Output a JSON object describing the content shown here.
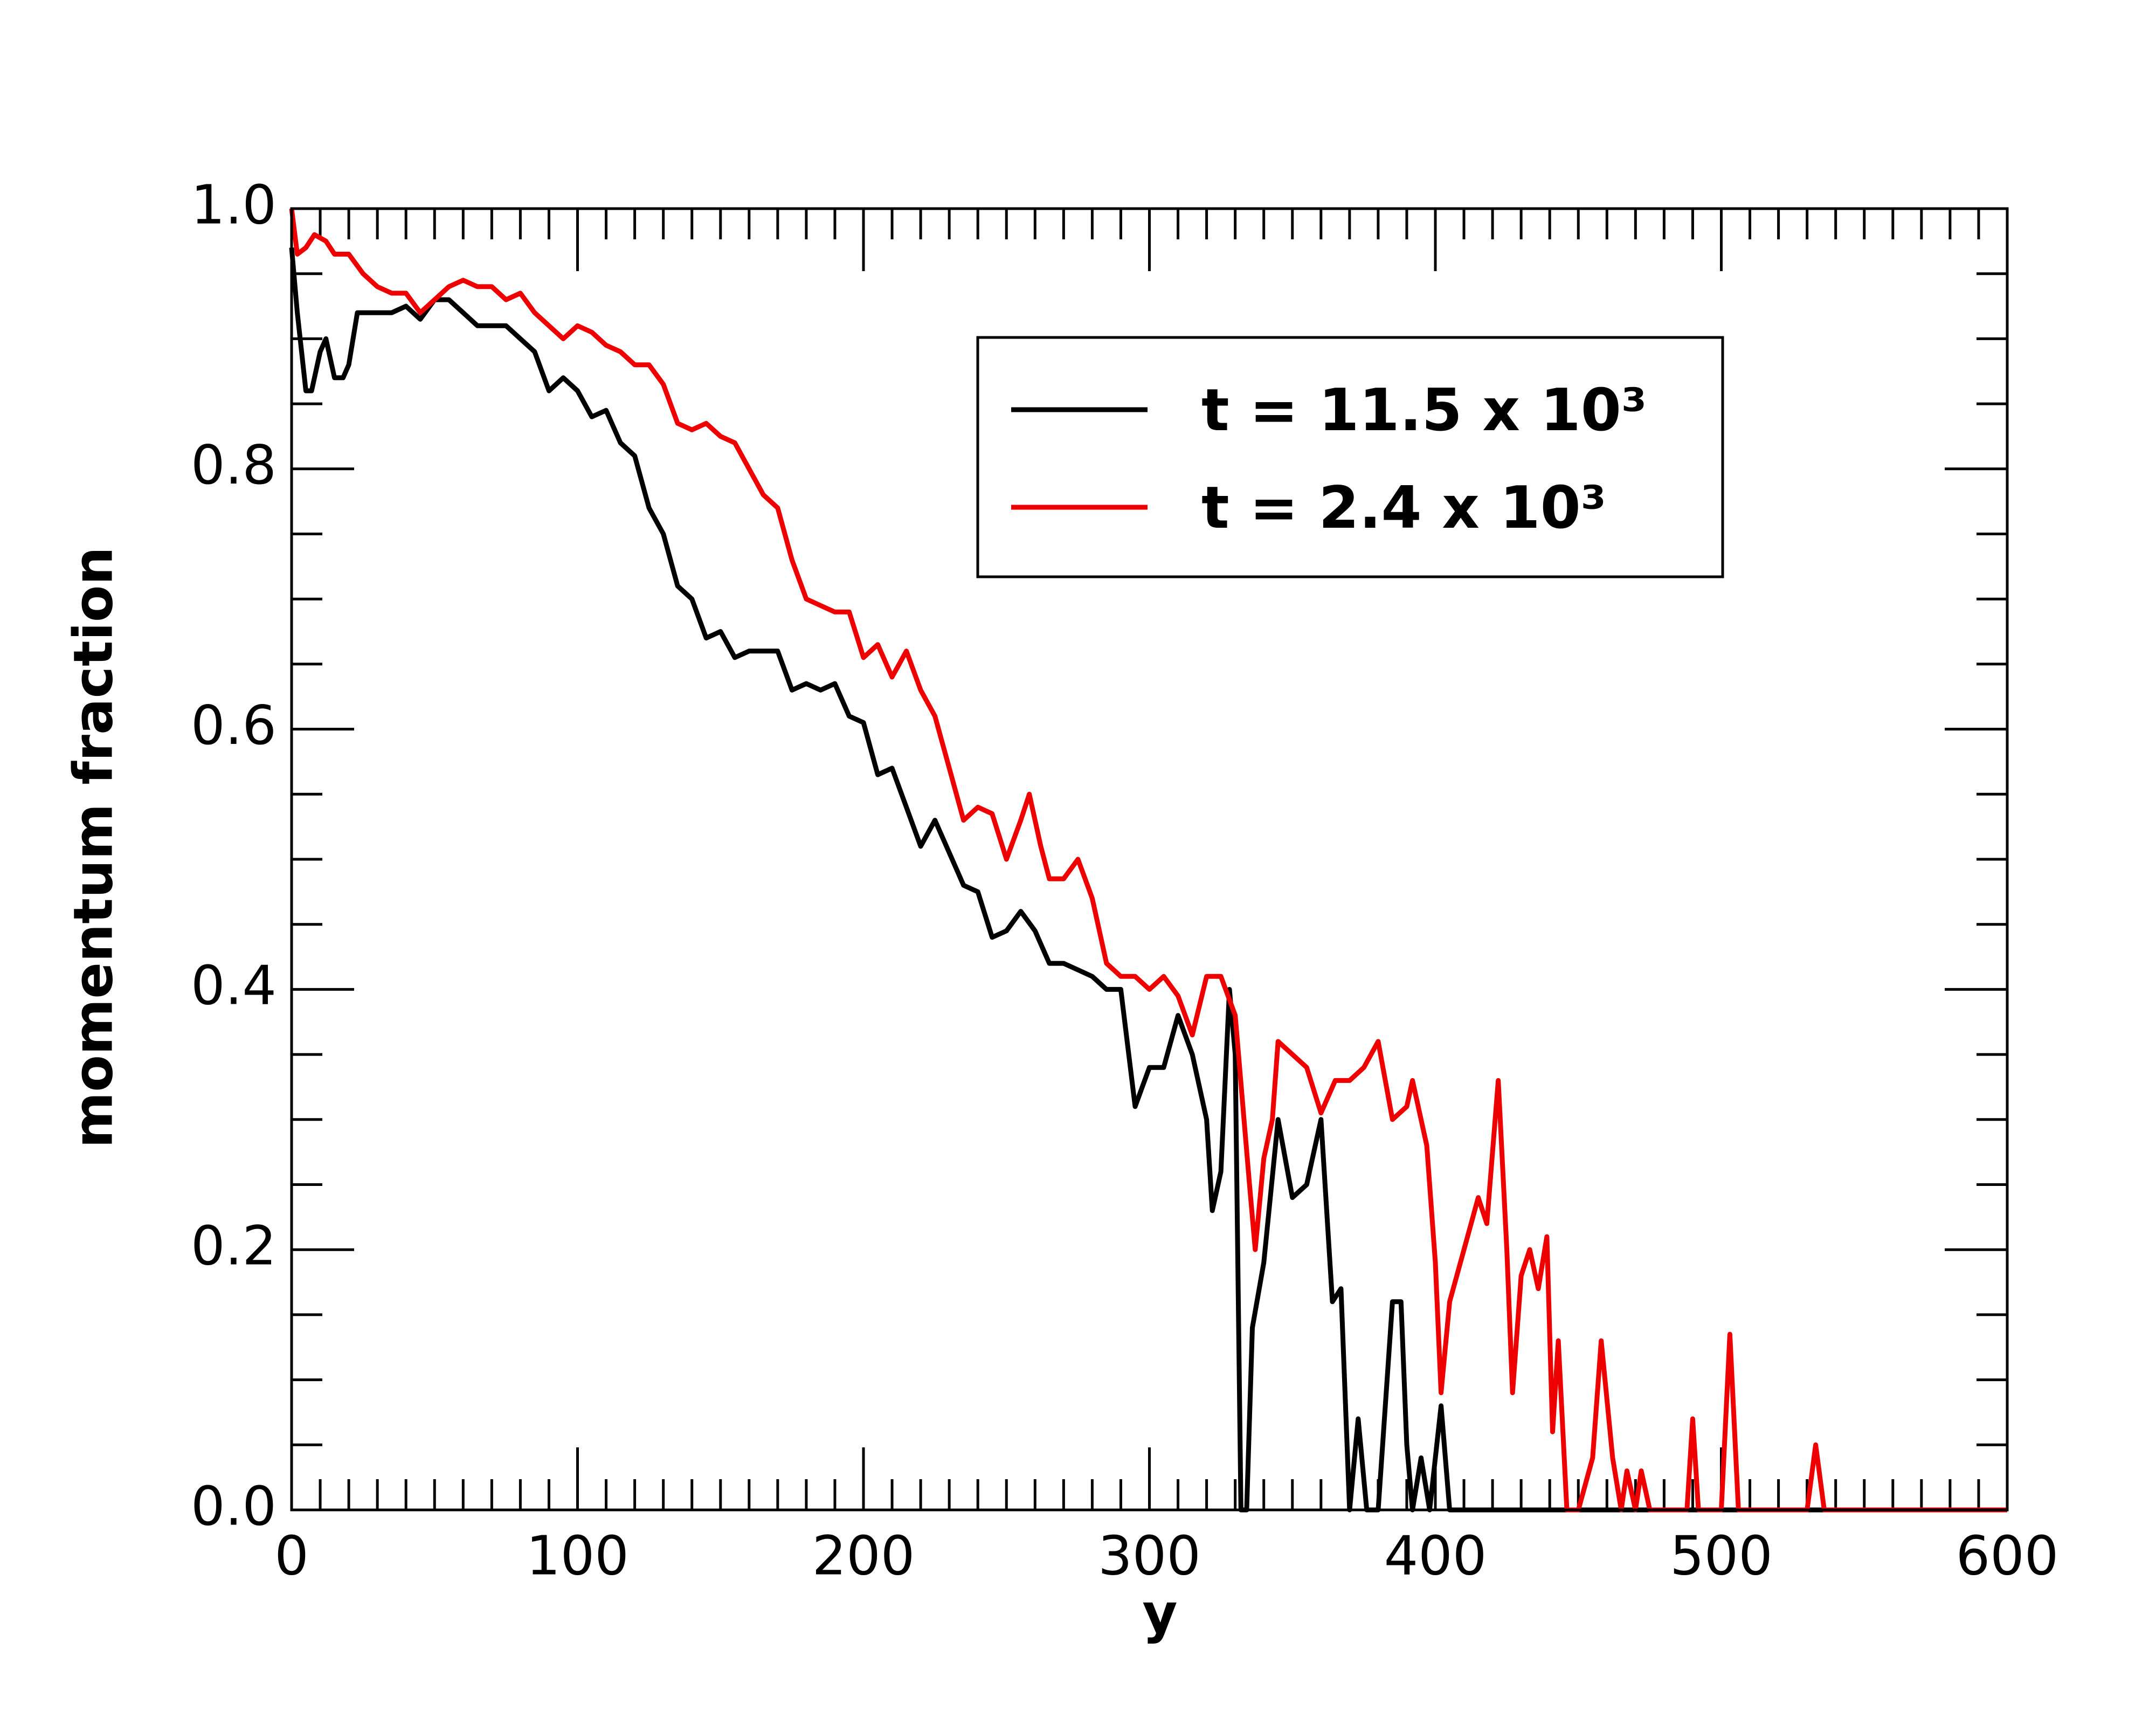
{
  "chart_data": {
    "type": "line",
    "xlabel": "y",
    "ylabel": "momentum fraction",
    "xlim": [
      0,
      600
    ],
    "xticks": [
      0,
      100,
      200,
      300,
      400,
      500,
      600
    ],
    "ylim": [
      0,
      1
    ],
    "yticks": [
      {
        "value": 0,
        "label": "0.0"
      },
      0.2,
      0.4,
      0.6,
      0.8,
      {
        "value": 1,
        "label": "1.0"
      }
    ],
    "legend": "upper right",
    "series": [
      {
        "name": "t = 11.5 x 10³",
        "color": "#000000",
        "x": [
          0,
          2,
          5,
          7,
          10,
          12,
          15,
          18,
          20,
          23,
          25,
          30,
          35,
          40,
          45,
          50,
          55,
          60,
          65,
          70,
          75,
          80,
          85,
          90,
          95,
          100,
          105,
          110,
          115,
          120,
          125,
          130,
          135,
          140,
          145,
          150,
          155,
          160,
          165,
          170,
          175,
          180,
          185,
          190,
          195,
          200,
          205,
          210,
          215,
          220,
          225,
          230,
          235,
          240,
          245,
          250,
          255,
          260,
          265,
          270,
          275,
          280,
          285,
          290,
          295,
          300,
          305,
          310,
          315,
          320,
          322,
          325,
          328,
          330,
          332,
          334,
          336,
          340,
          345,
          350,
          355,
          360,
          364,
          367,
          370,
          373,
          376,
          380,
          385,
          388,
          390,
          392,
          395,
          398,
          402,
          405,
          410,
          600
        ],
        "values": [
          0.97,
          0.92,
          0.86,
          0.86,
          0.89,
          0.9,
          0.87,
          0.87,
          0.88,
          0.92,
          0.92,
          0.92,
          0.92,
          0.925,
          0.915,
          0.93,
          0.93,
          0.92,
          0.91,
          0.91,
          0.91,
          0.9,
          0.89,
          0.86,
          0.87,
          0.86,
          0.84,
          0.845,
          0.82,
          0.81,
          0.77,
          0.75,
          0.71,
          0.7,
          0.67,
          0.675,
          0.655,
          0.66,
          0.66,
          0.66,
          0.63,
          0.635,
          0.63,
          0.635,
          0.61,
          0.605,
          0.565,
          0.57,
          0.54,
          0.51,
          0.53,
          0.505,
          0.48,
          0.475,
          0.44,
          0.445,
          0.46,
          0.445,
          0.42,
          0.42,
          0.415,
          0.41,
          0.4,
          0.4,
          0.31,
          0.34,
          0.34,
          0.38,
          0.35,
          0.3,
          0.23,
          0.26,
          0.4,
          0.35,
          0,
          0,
          0.14,
          0.19,
          0.3,
          0.24,
          0.25,
          0.3,
          0.16,
          0.17,
          0,
          0.07,
          0,
          0,
          0.16,
          0.16,
          0.05,
          0,
          0.04,
          0,
          0.08,
          0,
          0,
          0
        ]
      },
      {
        "name": "t = 2.4 x 10³",
        "color": "#ee0000",
        "x": [
          0,
          2,
          5,
          8,
          12,
          15,
          20,
          25,
          30,
          35,
          40,
          45,
          50,
          55,
          60,
          65,
          70,
          75,
          80,
          85,
          90,
          95,
          100,
          105,
          110,
          115,
          120,
          125,
          130,
          135,
          140,
          145,
          150,
          155,
          160,
          165,
          170,
          175,
          180,
          185,
          190,
          195,
          200,
          205,
          210,
          215,
          220,
          225,
          230,
          235,
          240,
          245,
          250,
          255,
          258,
          262,
          265,
          270,
          275,
          280,
          285,
          290,
          295,
          300,
          305,
          310,
          315,
          320,
          325,
          330,
          335,
          337,
          340,
          343,
          345,
          350,
          355,
          360,
          365,
          370,
          375,
          380,
          385,
          390,
          392,
          397,
          400,
          402,
          405,
          410,
          415,
          418,
          422,
          425,
          427,
          430,
          433,
          436,
          439,
          441,
          443,
          446,
          450,
          455,
          458,
          462,
          465,
          467,
          470,
          472,
          475,
          488,
          490,
          492,
          500,
          503,
          506,
          530,
          533,
          536,
          600
        ],
        "values": [
          1.0,
          0.965,
          0.97,
          0.98,
          0.975,
          0.965,
          0.965,
          0.95,
          0.94,
          0.935,
          0.935,
          0.92,
          0.93,
          0.94,
          0.945,
          0.94,
          0.94,
          0.93,
          0.935,
          0.92,
          0.91,
          0.9,
          0.91,
          0.905,
          0.895,
          0.89,
          0.88,
          0.88,
          0.865,
          0.835,
          0.83,
          0.835,
          0.825,
          0.82,
          0.8,
          0.78,
          0.77,
          0.73,
          0.7,
          0.695,
          0.69,
          0.69,
          0.655,
          0.665,
          0.64,
          0.66,
          0.63,
          0.61,
          0.57,
          0.53,
          0.54,
          0.535,
          0.5,
          0.53,
          0.55,
          0.51,
          0.485,
          0.485,
          0.5,
          0.47,
          0.42,
          0.41,
          0.41,
          0.4,
          0.41,
          0.395,
          0.365,
          0.41,
          0.41,
          0.38,
          0.25,
          0.2,
          0.27,
          0.3,
          0.36,
          0.35,
          0.34,
          0.305,
          0.33,
          0.33,
          0.34,
          0.36,
          0.3,
          0.31,
          0.33,
          0.28,
          0.19,
          0.09,
          0.16,
          0.2,
          0.24,
          0.22,
          0.33,
          0.2,
          0.09,
          0.18,
          0.2,
          0.17,
          0.21,
          0.06,
          0.13,
          0,
          0,
          0.04,
          0.13,
          0.04,
          0,
          0.03,
          0,
          0.03,
          0,
          0,
          0.07,
          0,
          0,
          0.135,
          0,
          0,
          0.05,
          0,
          0
        ]
      }
    ]
  }
}
